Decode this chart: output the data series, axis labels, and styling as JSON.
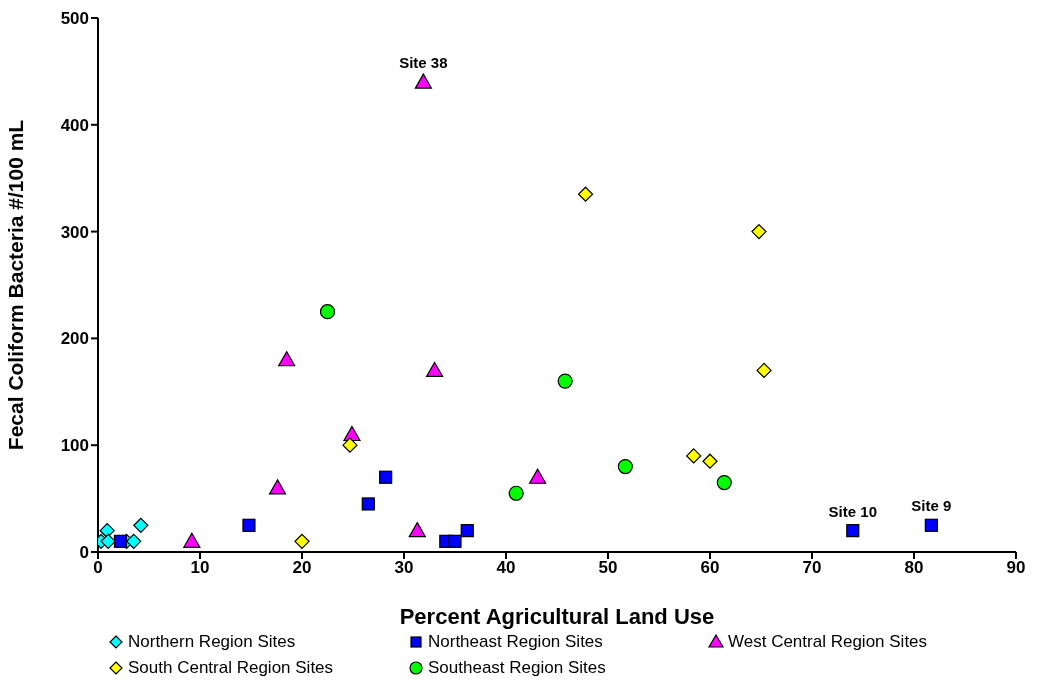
{
  "chart_data": {
    "type": "scatter",
    "xlabel": "Percent Agricultural Land Use",
    "ylabel": "Fecal Coliform Bacteria #/100 mL",
    "xlim": [
      0,
      90
    ],
    "xticks": [
      0,
      10,
      20,
      30,
      40,
      50,
      60,
      70,
      80,
      90
    ],
    "ylim": [
      0,
      500
    ],
    "yticks": [
      0,
      100,
      200,
      300,
      400,
      500
    ],
    "grid": false,
    "legend": "bottom",
    "series": [
      {
        "name": "Northern Region Sites",
        "color": "#00ffff",
        "marker": "diamond",
        "x": [
          0.3,
          0.9,
          1,
          2.8,
          3.5,
          4.2
        ],
        "values": [
          10,
          20,
          10,
          10,
          10,
          25
        ]
      },
      {
        "name": "Northeast Region Sites",
        "color": "#0000ff",
        "marker": "square",
        "x": [
          2.2,
          14.8,
          26.5,
          28.2,
          34.1,
          35,
          36.2,
          74,
          81.7
        ],
        "values": [
          10,
          25,
          45,
          70,
          10,
          10,
          20,
          20,
          25
        ]
      },
      {
        "name": "West Central Region Sites",
        "color": "#ff00ff",
        "marker": "triangle",
        "x": [
          9.2,
          17.6,
          18.5,
          24.9,
          31.9,
          31.3,
          33,
          43.1
        ],
        "values": [
          10,
          60,
          180,
          110,
          440,
          20,
          170,
          70
        ]
      },
      {
        "name": "South Central Region Sites",
        "color": "#ffff00",
        "marker": "diamond",
        "x": [
          20,
          24.7,
          47.8,
          58.4,
          60,
          64.8,
          65.3
        ],
        "values": [
          10,
          100,
          335,
          90,
          85,
          300,
          170
        ]
      },
      {
        "name": "Southeast Region Sites",
        "color": "#00ff00",
        "marker": "circle",
        "x": [
          22.5,
          41,
          45.8,
          51.7,
          61.4
        ],
        "values": [
          225,
          55,
          160,
          80,
          65
        ]
      }
    ],
    "annotations": [
      {
        "text": "Site 38",
        "x": 31.9,
        "y": 440
      },
      {
        "text": "Site 10",
        "x": 74,
        "y": 20
      },
      {
        "text": "Site 9",
        "x": 81.7,
        "y": 25
      }
    ]
  }
}
